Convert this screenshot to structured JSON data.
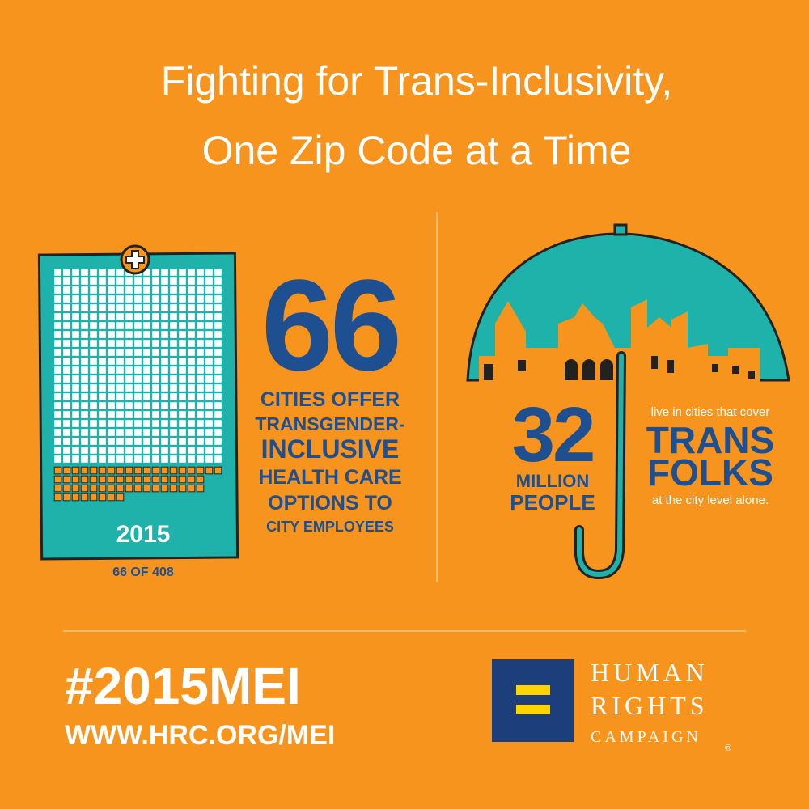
{
  "header": {
    "title_lines": [
      "Fighting for Trans-Inclusivity,",
      "One Zip Code at a Time"
    ]
  },
  "left_panel": {
    "big_number": "66",
    "lines": [
      "CITIES OFFER",
      "TRANSGENDER-",
      "INCLUSIVE",
      "HEALTH CARE",
      "OPTIONS TO",
      "CITY EMPLOYEES"
    ],
    "year": "2015",
    "caption": "66 OF 408"
  },
  "right_panel": {
    "big_number": "32",
    "number_lines": [
      "MILLION",
      "PEOPLE"
    ],
    "intro": "live in cities that cover",
    "highlight_lines": [
      "TRANS",
      "FOLKS"
    ],
    "outro": "at the city level alone."
  },
  "footer": {
    "hashtag": "#2015MEI",
    "url": "WWW.HRC.ORG/MEI",
    "logo_lines": [
      "HUMAN",
      "RIGHTS",
      "CAMPAIGN"
    ],
    "logo_mark": "®"
  }
}
